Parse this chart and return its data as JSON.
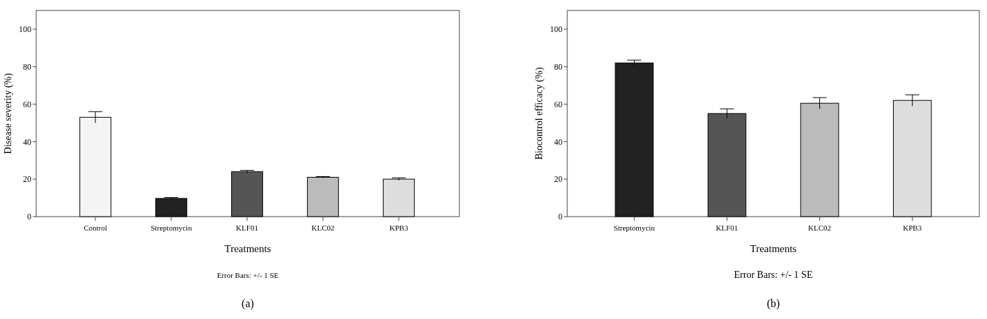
{
  "chart_data": [
    {
      "type": "bar",
      "xlabel": "Treatments",
      "ylabel": "Disease severity (%)",
      "categories": [
        "Control",
        "Streptomycin",
        "KLF01",
        "KLC02",
        "KPB3"
      ],
      "values": [
        53,
        9.7,
        24,
        21,
        20
      ],
      "errors": [
        3,
        0.5,
        0.7,
        0.4,
        0.7
      ],
      "colors": [
        "#f4f4f4",
        "#222222",
        "#555555",
        "#bbbbbb",
        "#dddddd"
      ],
      "ylim": [
        0,
        110
      ],
      "yticks": [
        0,
        20,
        40,
        60,
        80,
        100
      ],
      "grid": false,
      "annotations": [
        "Error Bars: +/- 1 SE",
        "(a)"
      ]
    },
    {
      "type": "bar",
      "xlabel": "Treatments",
      "ylabel": "Biocontrol efficacy (%)",
      "categories": [
        "Streptomycin",
        "KLF01",
        "KLC02",
        "KPB3"
      ],
      "values": [
        82,
        55,
        60.5,
        62
      ],
      "errors": [
        1.5,
        2.5,
        3,
        3
      ],
      "colors": [
        "#222222",
        "#555555",
        "#bbbbbb",
        "#dddddd"
      ],
      "ylim": [
        0,
        110
      ],
      "yticks": [
        0,
        20,
        40,
        60,
        80,
        100
      ],
      "grid": false,
      "annotations": [
        "Error Bars: +/- 1 SE",
        "(b)"
      ]
    }
  ]
}
